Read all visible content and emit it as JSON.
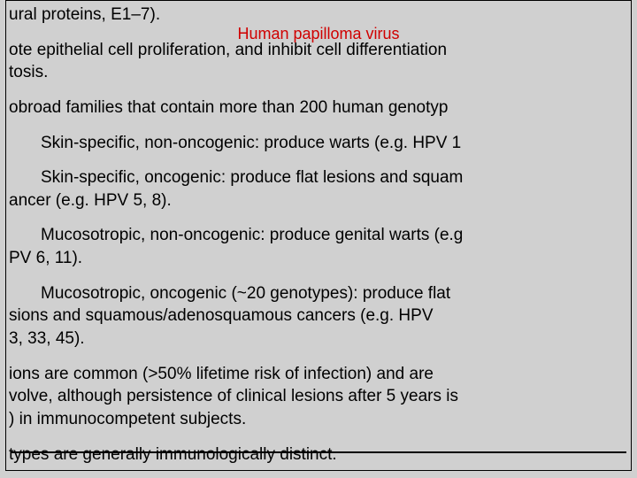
{
  "header": "Human papilloma virus",
  "lines": {
    "p1": "ural proteins, E1–7).",
    "p2a": "ote epithelial cell proliferation, and inhibit cell differentiation",
    "p2b": "tosis.",
    "p3": "obroad families that contain more than 200 human genotyp",
    "p4": "Skin-specific, non-oncogenic: produce warts (e.g. HPV 1",
    "p5a": "Skin-specific, oncogenic: produce flat lesions and squam",
    "p5b": "ancer (e.g. HPV 5, 8).",
    "p6a": "Mucosotropic, non-oncogenic: produce genital warts (e.g",
    "p6b": "PV 6, 11).",
    "p7a": "Mucosotropic, oncogenic (~20 genotypes): produce flat",
    "p7b": "sions and squamous/adenosquamous cancers (e.g. HPV",
    "p7c": "3, 33, 45).",
    "p8a": "ions are common (>50% lifetime risk of infection) and are ",
    "p8b": "volve, although persistence of clinical lesions after 5 years is",
    "p8c": ") in immunocompetent subjects.",
    "p9": "types are generally immunologically distinct."
  },
  "colors": {
    "background": "#d0d0d0",
    "text": "#000000",
    "header": "#d00000",
    "rule": "#000000"
  }
}
